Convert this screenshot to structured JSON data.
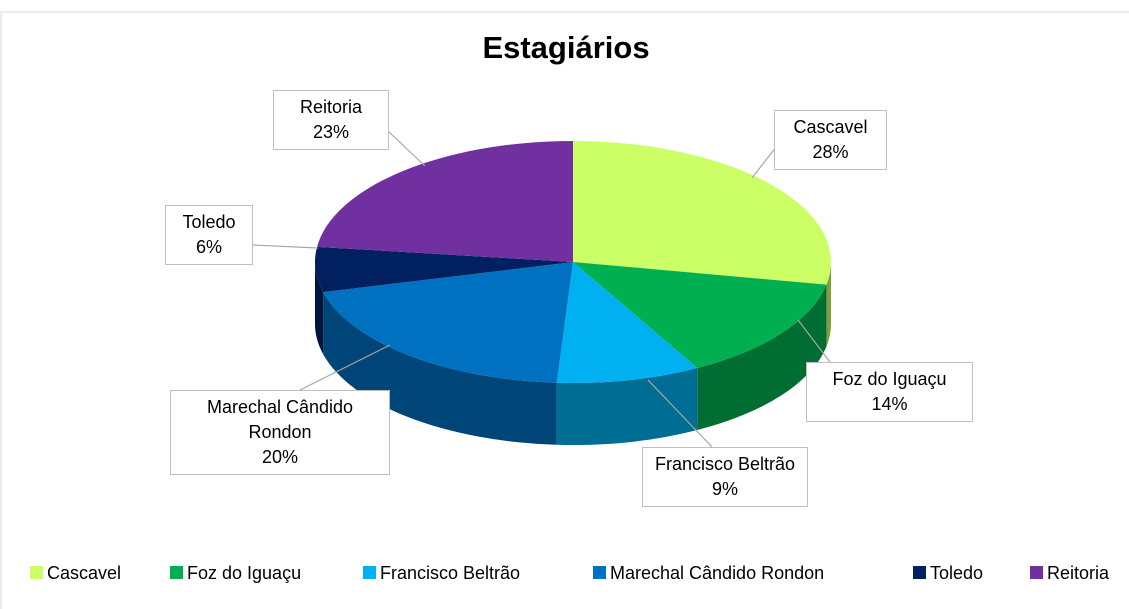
{
  "chart_data": {
    "type": "pie3d",
    "title": "Estagiários",
    "categories": [
      "Cascavel",
      "Foz do Iguaçu",
      "Francisco Beltrão",
      "Marechal Cândido Rondon",
      "Toledo",
      "Reitoria"
    ],
    "values": [
      28,
      14,
      9,
      20,
      6,
      23
    ],
    "value_labels": [
      "28%",
      "14%",
      "9%",
      "20%",
      "6%",
      "23%"
    ],
    "colors": [
      "#ccff66",
      "#00b050",
      "#00b0f0",
      "#0070c0",
      "#002060",
      "#7030a0"
    ],
    "legend": "bottom"
  }
}
